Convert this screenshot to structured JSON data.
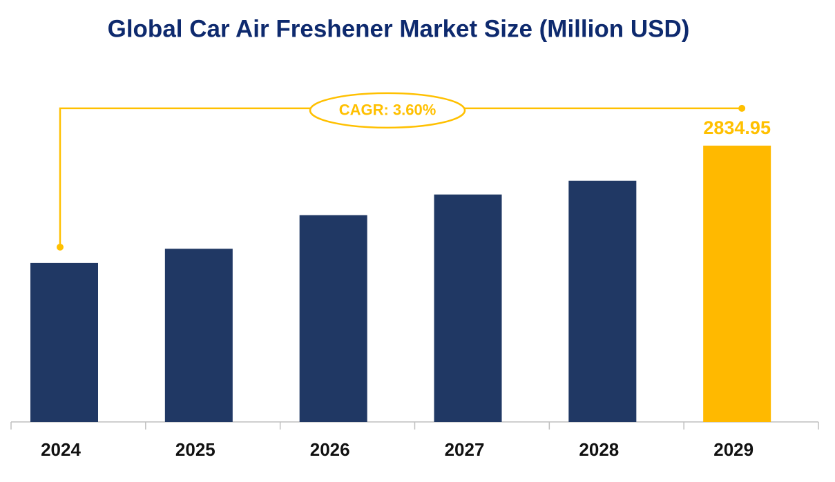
{
  "chart_data": {
    "type": "bar",
    "title": "Global Car Air Freshener Market Size (Million USD)",
    "categories": [
      "2024",
      "2025",
      "2026",
      "2027",
      "2028",
      "2029"
    ],
    "values": [
      2374,
      2430,
      2562,
      2643,
      2697,
      2834.95
    ],
    "value_labels": [
      null,
      null,
      null,
      null,
      null,
      "2834.95"
    ],
    "colors": [
      "#203864",
      "#203864",
      "#203864",
      "#203864",
      "#203864",
      "#ffb900"
    ],
    "ylim": [
      1750,
      3000
    ],
    "annotation": "CAGR: 3.60%",
    "annotation_color": "#ffc000"
  }
}
